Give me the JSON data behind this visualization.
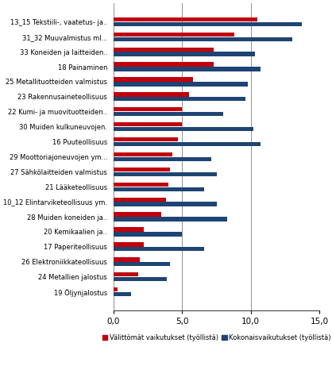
{
  "categories": [
    "13_15 Tekstiili-, vaatetus- ja..",
    "31_32 Muuvalmistus ml...",
    "33 Koneiden ja laitteiden..",
    "18 Painaminen",
    "25 Metallituotteiden valmistus",
    "23 Rakennusaineteollisuus",
    "22 Kumi- ja muovituotteiden..",
    "30 Muiden kulkuneuvojen.",
    "16 Puuteollisuus",
    "29 Moottoriajoneuvojen ym...",
    "27 Sähkölaitteiden valmistus",
    "21 Lääketeollisuus",
    "10_12 Elintarviketeollisuus ym.",
    "28 Muiden koneiden ja..",
    "20 Kemikaalien ja..",
    "17 Paperiteollisuus",
    "26 Elektroniikkateollisuus",
    "24 Metallien jalostus",
    "19 Öljynjalostus"
  ],
  "red_values": [
    10.5,
    8.8,
    7.3,
    7.3,
    5.8,
    5.5,
    5.0,
    5.0,
    4.7,
    4.3,
    4.1,
    4.0,
    3.8,
    3.5,
    2.2,
    2.2,
    1.9,
    1.8,
    0.3
  ],
  "blue_values": [
    13.7,
    13.0,
    10.3,
    10.7,
    9.8,
    9.6,
    8.0,
    10.2,
    10.7,
    7.1,
    7.5,
    6.6,
    7.5,
    8.3,
    5.0,
    6.6,
    4.1,
    3.9,
    1.3
  ],
  "red_color": "#c0000c",
  "blue_color": "#1e4473",
  "xlim": [
    0,
    15.0
  ],
  "xticks": [
    0.0,
    5.0,
    10.0,
    15.0
  ],
  "xticklabels": [
    "0,0",
    "5,0",
    "10,0",
    "15,0"
  ],
  "legend_red": "Välittömät vaikutukset (työllistä)",
  "legend_blue": "Kokonaisvaikutukset (työllistä)",
  "background_color": "#ffffff",
  "grid_color": "#808080"
}
